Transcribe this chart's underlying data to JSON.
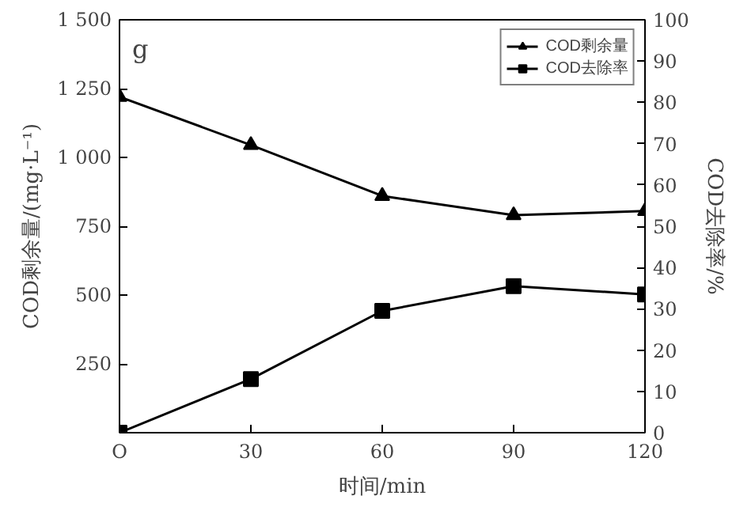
{
  "chart_data": {
    "type": "line",
    "xlabel": "时间/min",
    "ylabel": "COD剩余量/(mg·L⁻¹)",
    "y2label": "COD去除率/%",
    "x": [
      0,
      30,
      60,
      90,
      120
    ],
    "xlim": [
      0,
      120
    ],
    "xticks": [
      {
        "value": 0,
        "label": "O"
      },
      30,
      60,
      90,
      120
    ],
    "ylim": [
      0,
      1500
    ],
    "yticks": [
      250,
      500,
      750,
      {
        "value": 1000,
        "label": "1 000"
      },
      {
        "value": 1250,
        "label": "1 250"
      },
      {
        "value": 1500,
        "label": "1 500"
      }
    ],
    "y2lim": [
      0,
      100
    ],
    "y2ticks": [
      0,
      10,
      20,
      30,
      40,
      50,
      60,
      70,
      80,
      90,
      100
    ],
    "series": [
      {
        "name": "COD剩余量",
        "color": "#000000",
        "marker": "triangle",
        "values": [
          1220,
          1045,
          860,
          790,
          805
        ]
      },
      {
        "name": "COD去除率",
        "color": "#000000",
        "marker": "square",
        "axis": "y2",
        "values": [
          0,
          13,
          29.5,
          35.5,
          33.5
        ]
      }
    ],
    "annotations": [
      "g"
    ],
    "legend": "top right",
    "grid": false,
    "line_style": "solid"
  }
}
